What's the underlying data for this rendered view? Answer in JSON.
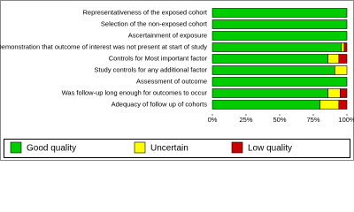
{
  "chart_data": {
    "type": "stacked-bar-horizontal",
    "categories": [
      "Representativeness of the exposed cohort",
      "Selection of the non-exposed cohort",
      "Ascertainment of exposure",
      "Demonstration that outcome of interest was not present at start of study",
      "Controls for Most important factor",
      "Study controls for any additional factor",
      "Assessment of outcome",
      "Was follow-up long enough for outcomes to occur",
      "Adequacy of follow up of cohorts"
    ],
    "series": [
      {
        "name": "Good quality",
        "color": "#00cc00",
        "values": [
          100,
          100,
          100,
          96,
          86,
          91,
          100,
          86,
          80
        ]
      },
      {
        "name": "Uncertain",
        "color": "#ffff00",
        "values": [
          0,
          0,
          0,
          2,
          8,
          9,
          0,
          9,
          14
        ]
      },
      {
        "name": "Low quality",
        "color": "#cc0000",
        "values": [
          0,
          0,
          0,
          2,
          6,
          0,
          0,
          5,
          6
        ]
      }
    ],
    "xlim": [
      0,
      100
    ],
    "xticks": [
      {
        "value": 0,
        "label": "0%"
      },
      {
        "value": 25,
        "label": "25%"
      },
      {
        "value": 50,
        "label": "50%"
      },
      {
        "value": 75,
        "label": "75%"
      },
      {
        "value": 100,
        "label": "100%"
      }
    ],
    "legend": "bottom"
  }
}
